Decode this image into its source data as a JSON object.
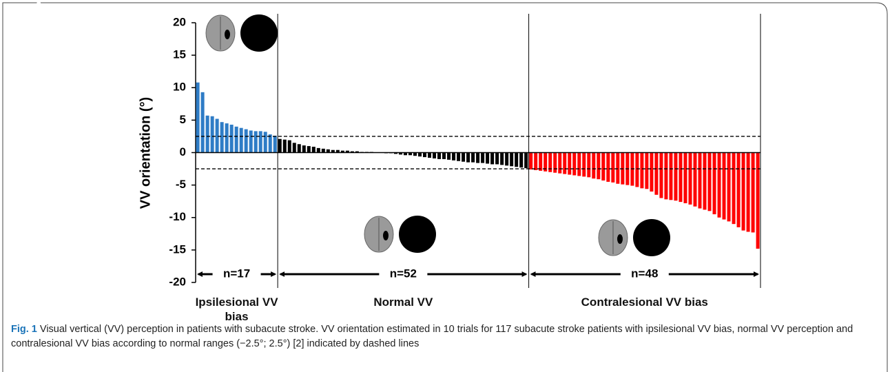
{
  "chart_data": {
    "type": "bar",
    "y_label": "VV orientation (°)",
    "ylim": [
      -20,
      20
    ],
    "yticks": [
      20,
      15,
      10,
      5,
      0,
      -5,
      -10,
      -15,
      -20
    ],
    "dashed_lines": [
      2.5,
      -2.5
    ],
    "series": [
      {
        "name": "Ipsilesional VV bias",
        "count_label": "n=17",
        "color": "#2e7cc6",
        "values": [
          10.8,
          9.3,
          5.7,
          5.6,
          5.2,
          4.7,
          4.5,
          4.3,
          4.0,
          3.8,
          3.6,
          3.4,
          3.3,
          3.3,
          3.2,
          2.8,
          2.6
        ]
      },
      {
        "name": "Normal VV",
        "count_label": "n=52",
        "color": "#000000",
        "values": [
          2.1,
          2.0,
          1.9,
          1.5,
          1.3,
          1.1,
          1.0,
          0.9,
          0.7,
          0.6,
          0.5,
          0.4,
          0.4,
          0.3,
          0.3,
          0.2,
          0.2,
          0.1,
          0.1,
          0.1,
          0,
          0,
          -0.1,
          -0.1,
          -0.2,
          -0.3,
          -0.4,
          -0.4,
          -0.5,
          -0.6,
          -0.7,
          -0.8,
          -0.9,
          -1.0,
          -1.0,
          -1.1,
          -1.2,
          -1.3,
          -1.4,
          -1.5,
          -1.5,
          -1.6,
          -1.6,
          -1.7,
          -1.8,
          -1.8,
          -1.9,
          -2.0,
          -2.1,
          -2.2,
          -2.3,
          -2.4
        ]
      },
      {
        "name": "Contralesional VV bias",
        "count_label": "n=48",
        "color": "#ff0000",
        "values": [
          -2.6,
          -2.7,
          -2.8,
          -2.9,
          -3.0,
          -3.1,
          -3.2,
          -3.3,
          -3.4,
          -3.5,
          -3.6,
          -3.7,
          -3.8,
          -4.0,
          -4.1,
          -4.3,
          -4.5,
          -4.6,
          -4.8,
          -4.9,
          -5.0,
          -5.1,
          -5.3,
          -5.5,
          -5.6,
          -6.0,
          -6.5,
          -7.0,
          -7.2,
          -7.3,
          -7.4,
          -7.6,
          -7.8,
          -8.0,
          -8.3,
          -8.6,
          -8.8,
          -9.0,
          -9.5,
          -10.0,
          -10.3,
          -10.6,
          -11.0,
          -11.5,
          -12.0,
          -12.2,
          -12.3,
          -14.8
        ]
      }
    ],
    "caption_label": "Fig. 1",
    "caption": "Visual vertical (VV) perception in patients with subacute stroke. VV orientation estimated in 10 trials for 117 subacute stroke patients with ipsilesional VV bias, normal VV perception and contralesional VV bias according to normal ranges (−2.5°; 2.5°) [2] indicated by dashed lines"
  }
}
